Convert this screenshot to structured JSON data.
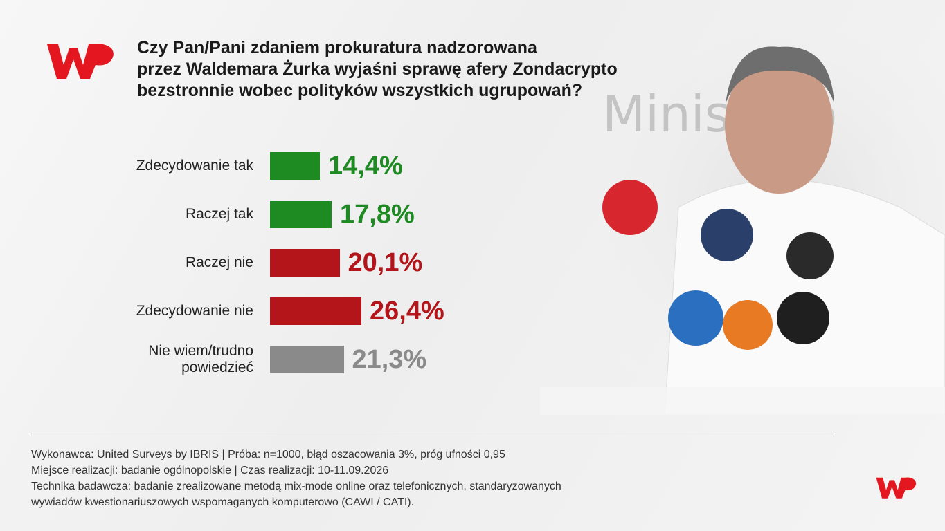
{
  "chart_data": {
    "type": "bar",
    "orientation": "horizontal",
    "title": [
      "Czy Pan/Pani zdaniem prokuratura nadzorowana",
      "przez Waldemara Żurka wyjaśni sprawę afery Zondacrypto",
      "bezstronnie wobec polityków wszystkich ugrupowań?"
    ],
    "categories": [
      "Zdecydowanie tak",
      "Raczej tak",
      "Raczej nie",
      "Zdecydowanie nie",
      "Nie wiem/trudno powiedzieć"
    ],
    "values": [
      14.4,
      17.8,
      20.1,
      26.4,
      21.3
    ],
    "value_labels": [
      "14,4%",
      "17,8%",
      "20,1%",
      "26,4%",
      "21,3%"
    ],
    "colors": [
      "#1e8a22",
      "#1e8a22",
      "#b3151a",
      "#b3151a",
      "#8a8a8a"
    ],
    "footer": [
      "Wykonawca: United Surveys by IBRIS | Próba: n=1000, błąd oszacowania 3%, próg ufności 0,95",
      "Miejsce realizacji: badanie ogólnopolskie | Czas realizacji: 10-11.09.2026",
      "Technika badawcza: badanie zrealizowane metodą mix-mode online oraz telefonicznych, standaryzowanych",
      "wywiadów kwestionariuszowych wspomaganych komputerowo (CAWI / CATI)."
    ]
  }
}
